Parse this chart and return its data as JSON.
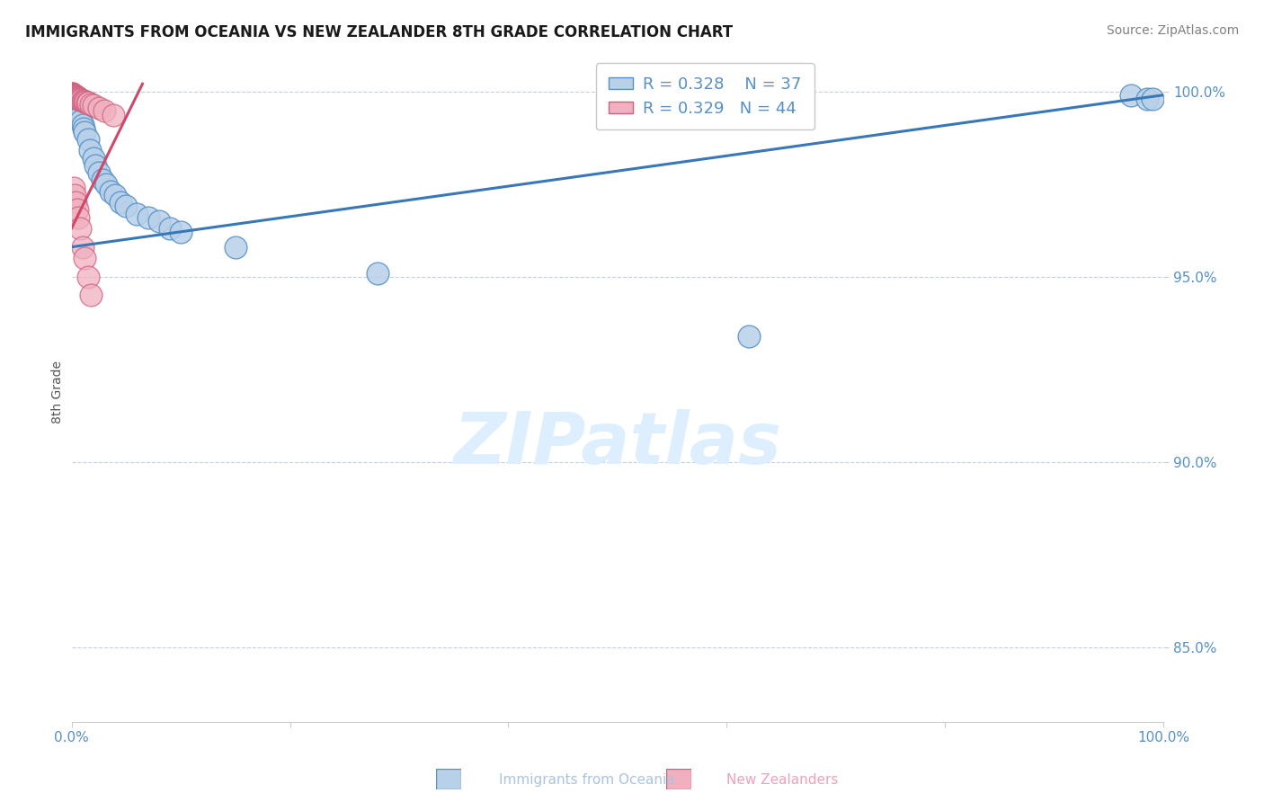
{
  "title": "IMMIGRANTS FROM OCEANIA VS NEW ZEALANDER 8TH GRADE CORRELATION CHART",
  "source": "Source: ZipAtlas.com",
  "xlabel_bottom": "Immigrants from Oceania",
  "xlabel_bottom2": "New Zealanders",
  "ylabel": "8th Grade",
  "xlim": [
    0.0,
    1.0
  ],
  "ylim": [
    0.83,
    1.008
  ],
  "xticks": [
    0.0,
    0.2,
    0.4,
    0.6,
    0.8,
    1.0
  ],
  "xticklabels": [
    "0.0%",
    "",
    "",
    "",
    "",
    "100.0%"
  ],
  "yticks": [
    0.85,
    0.9,
    0.95,
    1.0
  ],
  "yticklabels": [
    "85.0%",
    "90.0%",
    "95.0%",
    "100.0%"
  ],
  "blue_R": 0.328,
  "blue_N": 37,
  "pink_R": 0.329,
  "pink_N": 44,
  "blue_color": "#b8d0e8",
  "blue_edge_color": "#5590c8",
  "pink_color": "#f0b0c0",
  "pink_edge_color": "#d06080",
  "blue_scatter_x": [
    0.001,
    0.001,
    0.002,
    0.002,
    0.003,
    0.003,
    0.004,
    0.005,
    0.006,
    0.007,
    0.008,
    0.009,
    0.01,
    0.011,
    0.012,
    0.015,
    0.017,
    0.02,
    0.022,
    0.025,
    0.028,
    0.032,
    0.036,
    0.04,
    0.045,
    0.05,
    0.06,
    0.07,
    0.08,
    0.09,
    0.1,
    0.15,
    0.28,
    0.62,
    0.97,
    0.985,
    0.99
  ],
  "blue_scatter_y": [
    0.998,
    0.997,
    0.997,
    0.996,
    0.996,
    0.995,
    0.997,
    0.996,
    0.994,
    0.994,
    0.993,
    0.992,
    0.991,
    0.99,
    0.989,
    0.987,
    0.984,
    0.982,
    0.98,
    0.978,
    0.976,
    0.975,
    0.973,
    0.972,
    0.97,
    0.969,
    0.967,
    0.966,
    0.965,
    0.963,
    0.962,
    0.958,
    0.951,
    0.934,
    0.999,
    0.998,
    0.998
  ],
  "pink_scatter_x": [
    0.0003,
    0.0005,
    0.0006,
    0.0008,
    0.001,
    0.001,
    0.001,
    0.002,
    0.002,
    0.002,
    0.003,
    0.003,
    0.003,
    0.004,
    0.004,
    0.005,
    0.005,
    0.006,
    0.006,
    0.007,
    0.007,
    0.008,
    0.009,
    0.01,
    0.011,
    0.012,
    0.013,
    0.014,
    0.015,
    0.018,
    0.02,
    0.025,
    0.03,
    0.038,
    0.002,
    0.003,
    0.004,
    0.005,
    0.006,
    0.008,
    0.01,
    0.012,
    0.015,
    0.018
  ],
  "pink_scatter_y": [
    0.9995,
    0.9994,
    0.9993,
    0.9992,
    0.9992,
    0.9991,
    0.999,
    0.999,
    0.9989,
    0.9988,
    0.9988,
    0.9987,
    0.9986,
    0.9986,
    0.9985,
    0.9984,
    0.9983,
    0.9982,
    0.9981,
    0.998,
    0.9979,
    0.9978,
    0.9977,
    0.9975,
    0.9974,
    0.9973,
    0.9972,
    0.997,
    0.9969,
    0.9965,
    0.9962,
    0.9955,
    0.9948,
    0.9935,
    0.974,
    0.972,
    0.97,
    0.968,
    0.966,
    0.963,
    0.958,
    0.955,
    0.95,
    0.945
  ],
  "blue_trend_x0": 0.0,
  "blue_trend_x1": 1.0,
  "blue_trend_y0": 0.958,
  "blue_trend_y1": 0.999,
  "pink_trend_x0": 0.0,
  "pink_trend_x1": 0.065,
  "pink_trend_y0": 0.963,
  "pink_trend_y1": 1.002,
  "blue_line_color": "#3878b8",
  "pink_line_color": "#d04868",
  "watermark_text": "ZIPatlas",
  "watermark_color": "#ddeeff",
  "background_color": "#ffffff",
  "title_fontsize": 12,
  "source_fontsize": 10,
  "tick_fontsize": 11,
  "legend_fontsize": 13
}
